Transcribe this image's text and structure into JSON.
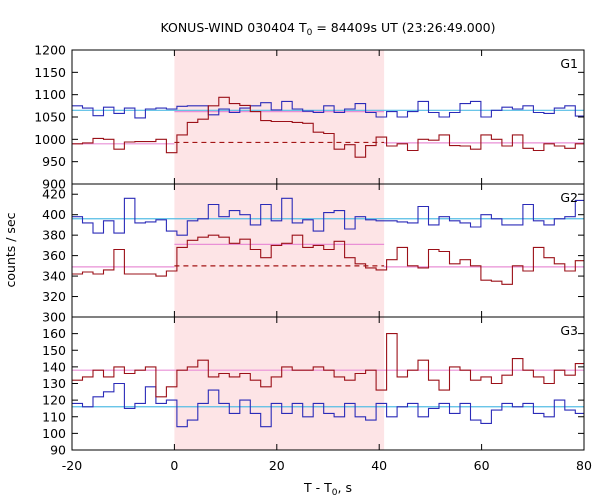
{
  "title_pre": "KONUS-WIND 030404 T",
  "title_sub": "0",
  "title_post": " = 84409s UT (23:26:49.000)",
  "chart_data": {
    "type": "line",
    "title": "KONUS-WIND 030404 T0 = 84409s UT (23:26:49.000)",
    "xlabel": "T - T0, s",
    "ylabel": "counts / sec",
    "xlim": [
      -20,
      80
    ],
    "x_ticks": [
      -20,
      0,
      20,
      40,
      60,
      80
    ],
    "x_tick_labels": [
      "-20",
      "0",
      "20",
      "40",
      "60",
      "80"
    ],
    "xlabel_pre": "T - T",
    "xlabel_sub": "0",
    "xlabel_post": ", s",
    "shaded_interval": [
      0,
      40.96
    ],
    "bin_width": 2.048,
    "bin_start": -20,
    "colors": {
      "window_shade": "#fde4e6",
      "blue_series": "#2b2bb8",
      "red_series": "#9b1018",
      "blue_fit": "#55bde4",
      "red_fit": "#e98fd6",
      "red_dashed": "#a31515"
    },
    "panels": [
      {
        "name": "G1",
        "ylim": [
          900,
          1200
        ],
        "y_ticks": [
          900,
          950,
          1000,
          1050,
          1100,
          1150,
          1200
        ],
        "y_tick_labels": [
          "900",
          "950",
          "1000",
          "1050",
          "1100",
          "1150",
          "1200"
        ],
        "blue_values": [
          1075,
          1070,
          1053,
          1072,
          1058,
          1070,
          1048,
          1068,
          1070,
          1068,
          1074,
          1075,
          1075,
          1055,
          1068,
          1060,
          1070,
          1075,
          1082,
          1066,
          1085,
          1068,
          1063,
          1060,
          1075,
          1060,
          1068,
          1080,
          1060,
          1050,
          1062,
          1050,
          1062,
          1085,
          1060,
          1050,
          1060,
          1080,
          1085,
          1050,
          1065,
          1072,
          1068,
          1075,
          1060,
          1058,
          1070,
          1075,
          1052,
          1050
        ],
        "red_values": [
          990,
          992,
          1002,
          1000,
          978,
          994,
          995,
          995,
          1000,
          970,
          1010,
          1038,
          1045,
          1075,
          1094,
          1080,
          1076,
          1062,
          1042,
          1040,
          1040,
          1038,
          1036,
          1016,
          1013,
          978,
          988,
          960,
          986,
          1005,
          985,
          990,
          975,
          1000,
          998,
          1010,
          986,
          985,
          978,
          1010,
          1000,
          985,
          1010,
          980,
          975,
          990,
          985,
          980,
          990,
          995
        ],
        "blue_fit": [
          {
            "x0": -20,
            "x1": 80,
            "y": 1065
          }
        ],
        "red_fit": [
          {
            "x0": -20,
            "x1": 0,
            "y": 990
          },
          {
            "x0": 40.96,
            "x1": 80,
            "y": 992
          }
        ],
        "red_dashed": {
          "x0": 0,
          "x1": 40.96,
          "y": 993
        },
        "red_window_step": {
          "x0": 0,
          "x1": 40.96,
          "y": 1062
        }
      },
      {
        "name": "G2",
        "ylim": [
          300,
          430
        ],
        "y_ticks": [
          300,
          320,
          340,
          360,
          380,
          400,
          420
        ],
        "y_tick_labels": [
          "300",
          "320",
          "340",
          "360",
          "380",
          "400",
          "420"
        ],
        "blue_values": [
          398,
          392,
          382,
          394,
          382,
          416,
          392,
          393,
          395,
          384,
          380,
          394,
          396,
          410,
          398,
          404,
          400,
          390,
          410,
          394,
          416,
          392,
          395,
          384,
          402,
          404,
          386,
          398,
          395,
          394,
          394,
          393,
          392,
          408,
          390,
          398,
          394,
          392,
          388,
          400,
          396,
          390,
          390,
          410,
          394,
          390,
          396,
          398,
          414,
          392
        ],
        "red_values": [
          342,
          344,
          342,
          346,
          366,
          342,
          342,
          342,
          340,
          345,
          368,
          375,
          378,
          380,
          378,
          372,
          376,
          366,
          358,
          370,
          372,
          380,
          368,
          370,
          366,
          374,
          358,
          352,
          348,
          346,
          356,
          368,
          350,
          348,
          366,
          364,
          352,
          356,
          350,
          336,
          335,
          332,
          350,
          345,
          368,
          358,
          352,
          345,
          355,
          350
        ],
        "blue_fit": [
          {
            "x0": -20,
            "x1": 80,
            "y": 396
          }
        ],
        "red_fit": [
          {
            "x0": -20,
            "x1": 0,
            "y": 349
          },
          {
            "x0": 0,
            "x1": 40.96,
            "y": 371
          },
          {
            "x0": 40.96,
            "x1": 80,
            "y": 349
          }
        ],
        "red_dashed": {
          "x0": 0,
          "x1": 40.96,
          "y": 350
        },
        "red_window_step": null
      },
      {
        "name": "G3",
        "ylim": [
          90,
          170
        ],
        "y_ticks": [
          90,
          100,
          110,
          120,
          130,
          140,
          150,
          160
        ],
        "y_tick_labels": [
          "90",
          "100",
          "110",
          "120",
          "130",
          "140",
          "150",
          "160"
        ],
        "blue_values": [
          118,
          116,
          122,
          125,
          130,
          115,
          118,
          128,
          118,
          120,
          104,
          108,
          118,
          126,
          118,
          112,
          120,
          112,
          104,
          118,
          112,
          118,
          110,
          118,
          112,
          110,
          118,
          110,
          108,
          118,
          110,
          116,
          118,
          110,
          115,
          118,
          112,
          118,
          108,
          106,
          114,
          118,
          116,
          118,
          112,
          110,
          120,
          114,
          112,
          118
        ],
        "red_values": [
          132,
          134,
          138,
          134,
          140,
          136,
          138,
          140,
          122,
          128,
          138,
          140,
          144,
          134,
          136,
          134,
          136,
          132,
          128,
          134,
          140,
          138,
          138,
          140,
          138,
          134,
          132,
          136,
          138,
          126,
          160,
          134,
          138,
          144,
          132,
          126,
          140,
          138,
          132,
          134,
          130,
          135,
          145,
          138,
          134,
          130,
          138,
          135,
          142,
          137
        ],
        "blue_fit": [
          {
            "x0": -20,
            "x1": 80,
            "y": 116
          }
        ],
        "red_fit": [
          {
            "x0": -20,
            "x1": 80,
            "y": 138
          }
        ],
        "red_dashed": null,
        "red_window_step": null
      }
    ]
  }
}
